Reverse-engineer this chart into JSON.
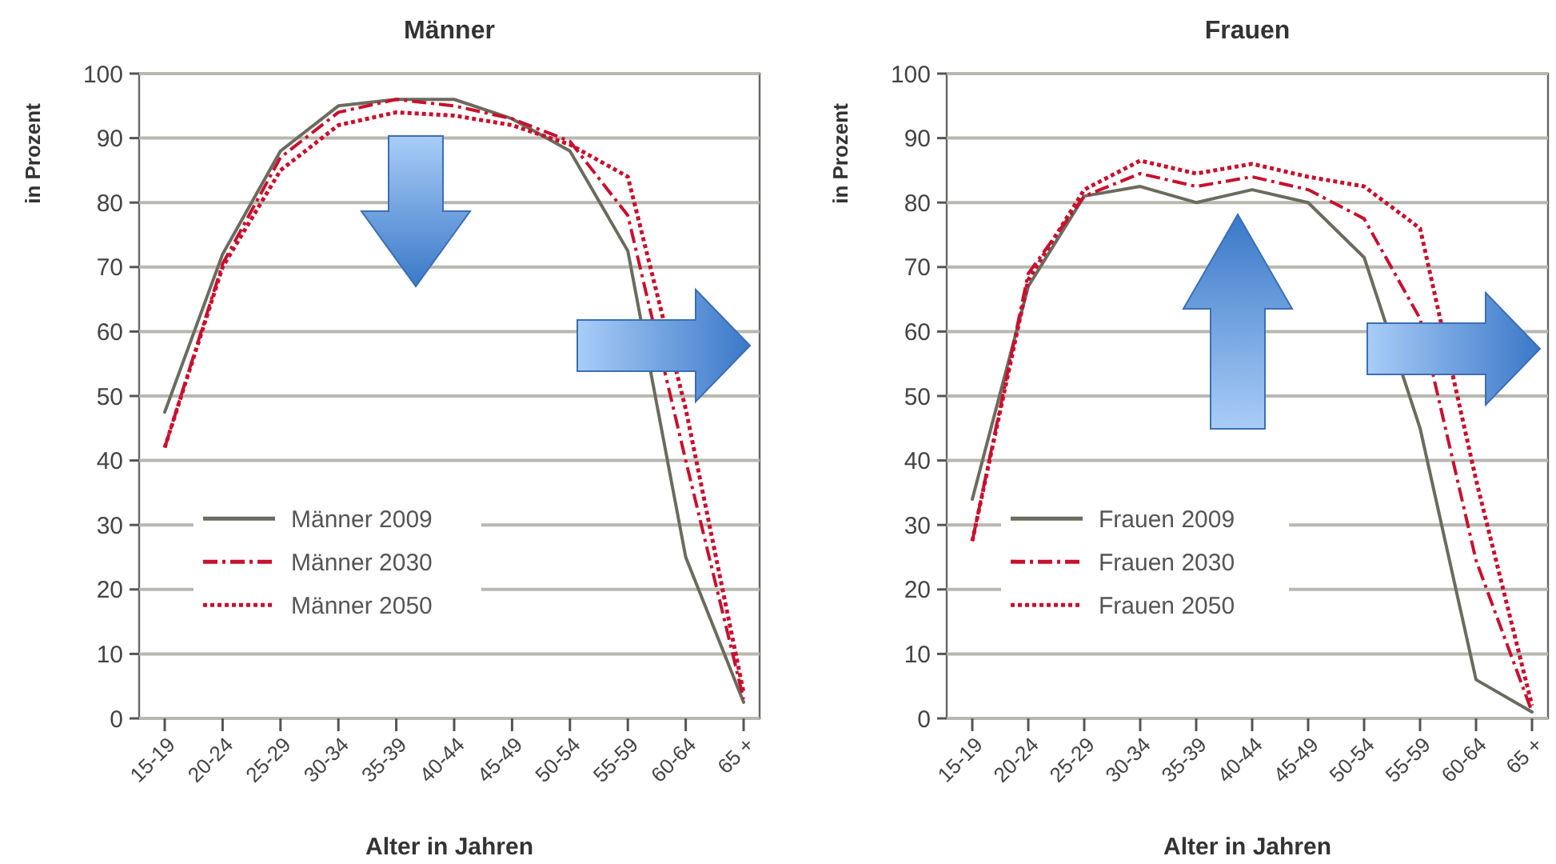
{
  "chart_data": [
    {
      "type": "line",
      "title": "Männer",
      "xlabel": "Alter in Jahren",
      "ylabel": "in Prozent",
      "categories": [
        "15-19",
        "20-24",
        "25-29",
        "30-34",
        "35-39",
        "40-44",
        "45-49",
        "50-54",
        "55-59",
        "60-64",
        "65 +"
      ],
      "ylim": [
        0,
        100
      ],
      "yticks": [
        0,
        10,
        20,
        30,
        40,
        50,
        60,
        70,
        80,
        90,
        100
      ],
      "grid": "y",
      "legend": "bottom left",
      "series": [
        {
          "name": "Männer 2009",
          "color": "#6b6b5e",
          "line_style": "solid",
          "values": [
            47.5,
            72,
            88,
            95,
            96,
            96,
            93,
            88,
            72.5,
            25,
            2.5
          ]
        },
        {
          "name": "Männer 2030",
          "color": "#c8102e",
          "line_style": "dashed",
          "values": [
            42,
            70.5,
            87,
            94,
            96,
            95,
            93,
            89.5,
            78,
            40,
            3
          ]
        },
        {
          "name": "Männer 2050",
          "color": "#c8102e",
          "line_style": "dotted",
          "values": [
            42,
            70,
            85,
            92,
            94,
            93.5,
            92,
            89,
            84,
            48,
            4
          ]
        }
      ]
    },
    {
      "type": "line",
      "title": "Frauen",
      "xlabel": "Alter in Jahren",
      "ylabel": "in Prozent",
      "categories": [
        "15-19",
        "20-24",
        "25-29",
        "30-34",
        "35-39",
        "40-44",
        "45-49",
        "50-54",
        "55-59",
        "60-64",
        "65 +"
      ],
      "ylim": [
        0,
        100
      ],
      "yticks": [
        0,
        10,
        20,
        30,
        40,
        50,
        60,
        70,
        80,
        90,
        100
      ],
      "grid": "y",
      "legend": "bottom left",
      "series": [
        {
          "name": "Frauen 2009",
          "color": "#6b6b5e",
          "line_style": "solid",
          "values": [
            34,
            67,
            81,
            82.5,
            80,
            82,
            80,
            71.5,
            45,
            6,
            1
          ]
        },
        {
          "name": "Frauen 2030",
          "color": "#c8102e",
          "line_style": "dashed",
          "values": [
            27.5,
            69,
            81,
            84.5,
            82.5,
            84,
            82,
            77.5,
            62,
            24.5,
            1
          ]
        },
        {
          "name": "Frauen 2050",
          "color": "#c8102e",
          "line_style": "dotted",
          "values": [
            27.5,
            68,
            82,
            86.5,
            84.5,
            86,
            84,
            82.5,
            76,
            37,
            2
          ]
        }
      ]
    }
  ]
}
